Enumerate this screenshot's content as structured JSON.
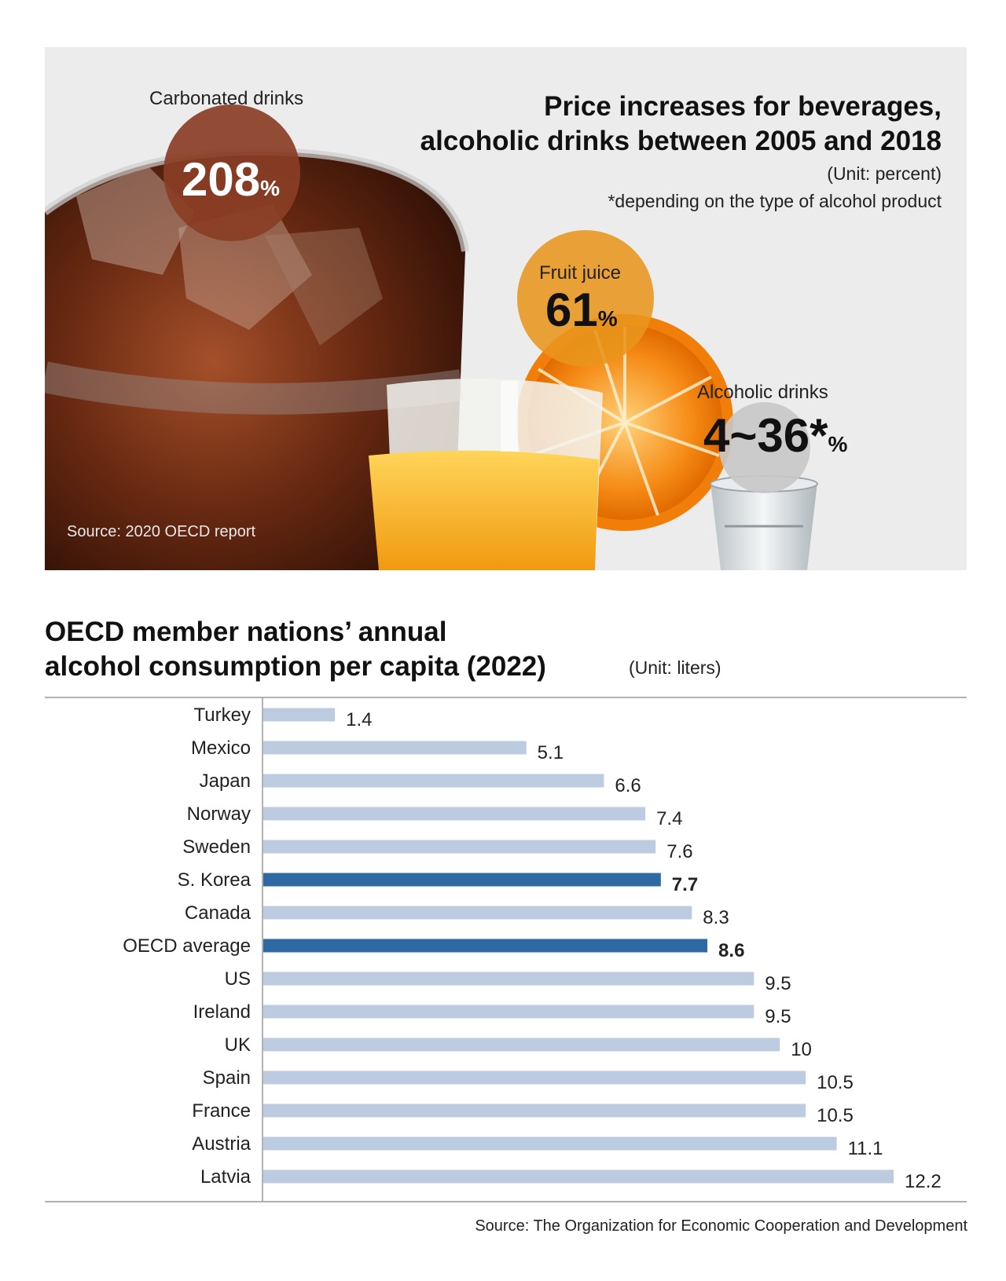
{
  "top_panel": {
    "title_line1": "Price increases for beverages,",
    "title_line2": "alcoholic drinks between 2005 and 2018",
    "unit": "(Unit: percent)",
    "footnote": "*depending on the type of alcohol product",
    "source": "Source: 2020 OECD report",
    "items": [
      {
        "label": "Carbonated drinks",
        "value": "208",
        "unit": "%",
        "color": "#8a3e25"
      },
      {
        "label": "Fruit juice",
        "value": "61",
        "unit": "%",
        "color": "#e8951c"
      },
      {
        "label": "Alcoholic drinks",
        "value": "4~36*",
        "unit": "%",
        "color": "#c8c8c8"
      }
    ]
  },
  "chart_title_line1": "OECD member nations’ annual",
  "chart_title_line2": "alcohol consumption per capita (2022)",
  "chart_unit": "(Unit: liters)",
  "source_bottom": "Source: The Organization for Economic Cooperation and Development",
  "colors": {
    "bar": "#bccbe0",
    "highlight": "#2e6aa1"
  },
  "chart_data": {
    "type": "bar",
    "orientation": "horizontal",
    "categories": [
      "Turkey",
      "Mexico",
      "Japan",
      "Norway",
      "Sweden",
      "S. Korea",
      "Canada",
      "OECD average",
      "US",
      "Ireland",
      "UK",
      "Spain",
      "France",
      "Austria",
      "Latvia"
    ],
    "values": [
      1.4,
      5.1,
      6.6,
      7.4,
      7.6,
      7.7,
      8.3,
      8.6,
      9.5,
      9.5,
      10,
      10.5,
      10.5,
      11.1,
      12.2
    ],
    "labels": [
      "1.4",
      "5.1",
      "6.6",
      "7.4",
      "7.6",
      "7.7",
      "8.3",
      "8.6",
      "9.5",
      "9.5",
      "10",
      "10.5",
      "10.5",
      "11.1",
      "12.2"
    ],
    "highlighted": [
      "S. Korea",
      "OECD average"
    ],
    "xlim": [
      0,
      12.2
    ],
    "grid": false
  }
}
